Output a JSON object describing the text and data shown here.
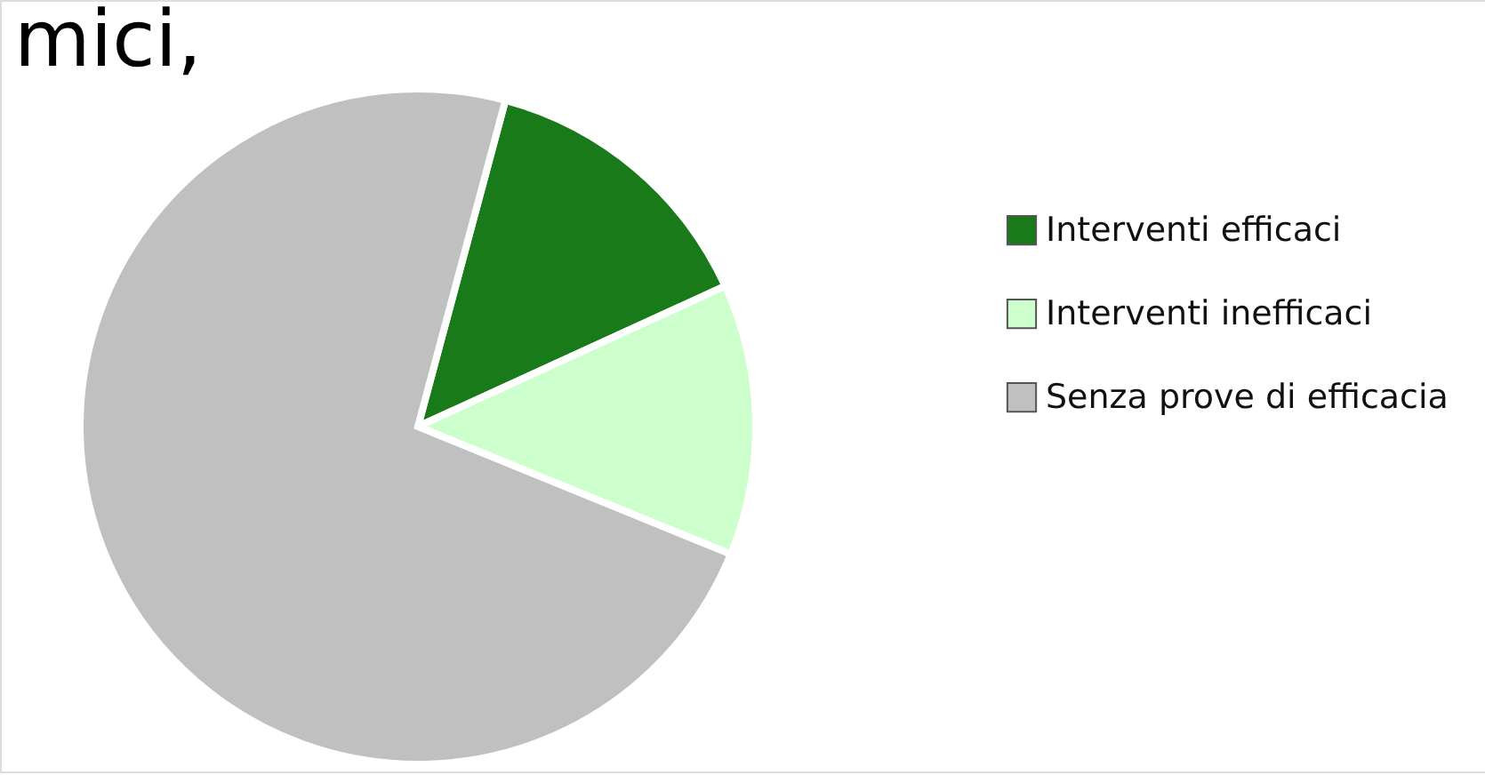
{
  "chart_data": {
    "type": "pie",
    "annotations": [
      "mici,"
    ],
    "categories": [
      "Interventi efficaci",
      "Interventi inefficaci",
      "Senza prove di efficacia"
    ],
    "values": [
      14,
      13,
      73
    ],
    "colors": [
      "#197a19",
      "#ccffcc",
      "#c0c0c0"
    ],
    "legend": "right"
  }
}
